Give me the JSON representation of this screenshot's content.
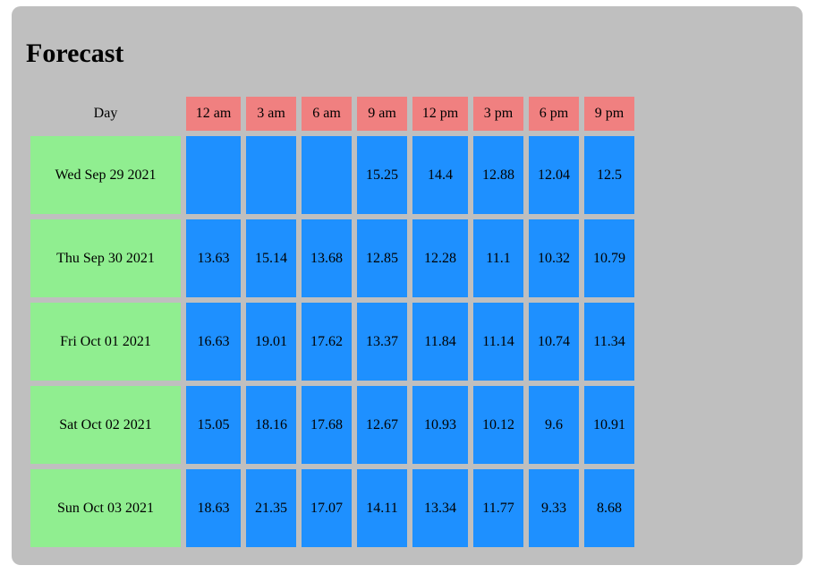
{
  "title": "Forecast",
  "colors": {
    "panel": "#bfbfbf",
    "time_header": "#f08080",
    "day_cell": "#90ee90",
    "value_cell": "#1e90ff"
  },
  "table": {
    "day_header": "Day",
    "times": [
      "12 am",
      "3 am",
      "6 am",
      "9 am",
      "12 pm",
      "3 pm",
      "6 pm",
      "9 pm"
    ],
    "rows": [
      {
        "day": "Wed Sep 29 2021",
        "values": [
          "",
          "",
          "",
          "15.25",
          "14.4",
          "12.88",
          "12.04",
          "12.5"
        ]
      },
      {
        "day": "Thu Sep 30 2021",
        "values": [
          "13.63",
          "15.14",
          "13.68",
          "12.85",
          "12.28",
          "11.1",
          "10.32",
          "10.79"
        ]
      },
      {
        "day": "Fri Oct 01 2021",
        "values": [
          "16.63",
          "19.01",
          "17.62",
          "13.37",
          "11.84",
          "11.14",
          "10.74",
          "11.34"
        ]
      },
      {
        "day": "Sat Oct 02 2021",
        "values": [
          "15.05",
          "18.16",
          "17.68",
          "12.67",
          "10.93",
          "10.12",
          "9.6",
          "10.91"
        ]
      },
      {
        "day": "Sun Oct 03 2021",
        "values": [
          "18.63",
          "21.35",
          "17.07",
          "14.11",
          "13.34",
          "11.77",
          "9.33",
          "8.68"
        ]
      }
    ]
  }
}
